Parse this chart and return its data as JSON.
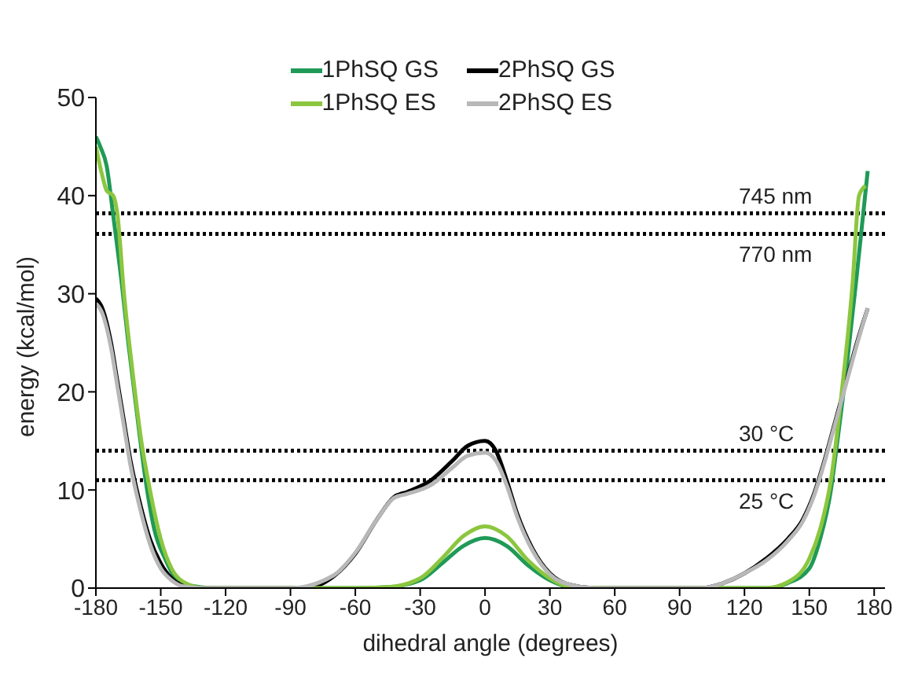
{
  "chart_data": {
    "type": "line",
    "xlabel": "dihedral angle (degrees)",
    "ylabel": "energy (kcal/mol)",
    "xlim": [
      -180,
      185
    ],
    "xticks": [
      -180,
      -150,
      -120,
      -90,
      -60,
      -30,
      0,
      30,
      60,
      90,
      120,
      150,
      180
    ],
    "ylim": [
      0,
      50
    ],
    "yticks": [
      0,
      10,
      20,
      30,
      40,
      50
    ],
    "grid": false,
    "legend": "top",
    "marker": "none",
    "line_style": "solid",
    "series": [
      {
        "name": "1PhSQ GS",
        "color": "#1f9a57",
        "x": [
          -180,
          -178,
          -175,
          -172,
          -168,
          -165,
          -160,
          -157,
          -153,
          -148,
          -143,
          -135,
          -125,
          -90,
          -60,
          -45,
          -30,
          -20,
          -10,
          0,
          10,
          20,
          30,
          40,
          60,
          100,
          130,
          140,
          150,
          155,
          160,
          163,
          167,
          172,
          177
        ],
        "values": [
          46,
          45,
          43,
          38,
          31,
          25,
          16,
          11,
          6,
          3,
          1,
          0.2,
          0,
          0,
          0,
          0.1,
          0.8,
          2.5,
          4.3,
          5.1,
          4.3,
          2.3,
          0.8,
          0.1,
          0,
          0,
          0,
          0.5,
          2,
          5,
          10,
          15,
          22,
          32,
          42.5
        ]
      },
      {
        "name": "2PhSQ GS",
        "color": "#000000",
        "x": [
          -180,
          -177,
          -173,
          -170,
          -167,
          -164,
          -160,
          -155,
          -150,
          -145,
          -140,
          -130,
          -100,
          -83,
          -70,
          -60,
          -50,
          -42,
          -36,
          -25,
          -15,
          -8,
          0,
          5,
          10,
          15,
          22,
          30,
          40,
          50,
          100,
          110,
          120,
          130,
          140,
          147,
          152,
          157,
          162,
          167,
          172,
          177
        ],
        "values": [
          29.5,
          28.5,
          25,
          21,
          17,
          13,
          9,
          5,
          2.5,
          1,
          0.3,
          0,
          0,
          0,
          1.2,
          3.5,
          7,
          9.3,
          9.8,
          11,
          13,
          14.5,
          15,
          14,
          11,
          7.5,
          4,
          1.5,
          0.3,
          0,
          0,
          0.5,
          1.5,
          3,
          5,
          7,
          9.5,
          13,
          17,
          21,
          25,
          28.5
        ]
      },
      {
        "name": "1PhSQ ES",
        "color": "#8cc63f",
        "x": [
          -180,
          -177,
          -175,
          -172,
          -170,
          -167,
          -163,
          -159,
          -155,
          -150,
          -145,
          -140,
          -130,
          -90,
          -60,
          -45,
          -30,
          -20,
          -10,
          0,
          10,
          20,
          30,
          40,
          60,
          100,
          130,
          140,
          150,
          155,
          160,
          165,
          170,
          173,
          176
        ],
        "values": [
          45,
          42,
          40.5,
          40,
          38,
          30,
          22,
          15,
          10,
          5,
          2,
          0.7,
          0,
          0,
          0,
          0.1,
          1,
          3,
          5.3,
          6.3,
          5.3,
          2.8,
          1,
          0.1,
          0,
          0,
          0,
          0.6,
          3,
          6,
          11,
          20,
          31,
          40,
          41
        ]
      },
      {
        "name": "2PhSQ ES",
        "color": "#b8b8b8",
        "x": [
          -180,
          -177,
          -173,
          -170,
          -167,
          -164,
          -160,
          -155,
          -150,
          -145,
          -140,
          -130,
          -100,
          -90,
          -70,
          -60,
          -50,
          -42,
          -36,
          -25,
          -15,
          -8,
          0,
          5,
          10,
          15,
          22,
          30,
          40,
          50,
          100,
          110,
          120,
          130,
          140,
          147,
          152,
          157,
          162,
          167,
          172,
          177
        ],
        "values": [
          29,
          28,
          24.5,
          20.5,
          16.5,
          12.5,
          8.5,
          4.5,
          2,
          0.8,
          0.2,
          0,
          0,
          0,
          1.3,
          3.6,
          7,
          9.2,
          9.6,
          10.5,
          12.3,
          13.5,
          13.8,
          13,
          10.5,
          7.2,
          3.8,
          1.4,
          0.3,
          0,
          0,
          0.5,
          1.5,
          2.8,
          4.8,
          6.8,
          9.3,
          12.8,
          16.8,
          20.8,
          24.8,
          28.5
        ]
      }
    ],
    "ref_lines": [
      {
        "axis": "y",
        "value": 38.2,
        "label": "745 nm",
        "color": "#000000",
        "line_style": "dotted"
      },
      {
        "axis": "y",
        "value": 36.1,
        "label": "770 nm",
        "color": "#000000",
        "line_style": "dotted"
      },
      {
        "axis": "y",
        "value": 14,
        "label": "30 °C",
        "color": "#000000",
        "line_style": "dotted"
      },
      {
        "axis": "y",
        "value": 11,
        "label": "25 °C",
        "color": "#000000",
        "line_style": "dotted"
      }
    ]
  }
}
